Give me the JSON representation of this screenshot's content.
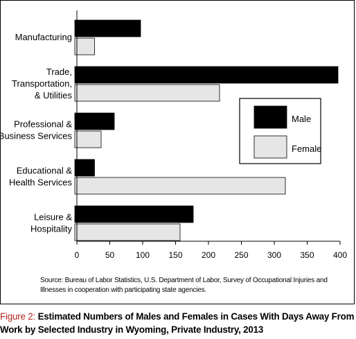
{
  "chart_data": {
    "type": "bar",
    "orientation": "horizontal",
    "categories": [
      [
        "Manufacturing"
      ],
      [
        "Trade,",
        "Transportation,",
        "& Utilities"
      ],
      [
        "Professional &",
        "Business Services"
      ],
      [
        "Educational &",
        "Health Services"
      ],
      [
        "Leisure &",
        "Hospitality"
      ]
    ],
    "series": [
      {
        "name": "Male",
        "values": [
          100,
          400,
          60,
          30,
          180
        ],
        "color": "#000000"
      },
      {
        "name": "Female",
        "values": [
          30,
          220,
          40,
          320,
          160
        ],
        "color": "#e6e6e6"
      }
    ],
    "xlim": [
      0,
      400
    ],
    "xticks": [
      0,
      50,
      100,
      150,
      200,
      250,
      300,
      350,
      400
    ],
    "grid": false,
    "legend_position": "right-middle"
  },
  "source_note": "Source: Bureau of Labor Statistics, U.S. Department of Labor, Survey of Occupational Injuries and Illnesses in cooperation with participating state agencies.",
  "caption": {
    "label": "Figure 2:",
    "text": " Estimated Numbers of Males and Females in Cases With Days Away From Work by Selected Industry in Wyoming, Private Industry, 2013"
  }
}
